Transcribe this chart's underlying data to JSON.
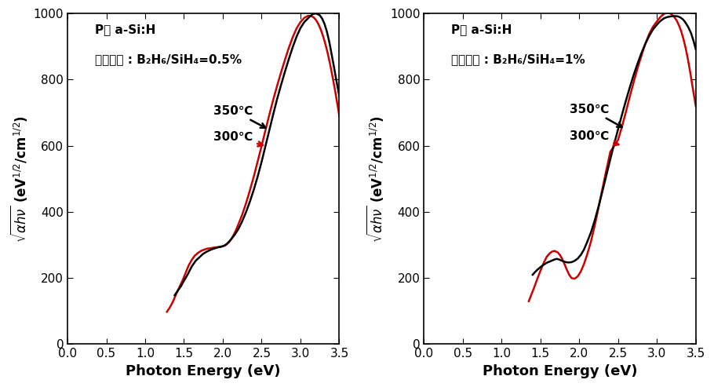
{
  "xlabel": "Photon Energy (eV)",
  "xlim": [
    0.0,
    3.5
  ],
  "ylim": [
    0,
    1000
  ],
  "xticks": [
    0.0,
    0.5,
    1.0,
    1.5,
    2.0,
    2.5,
    3.0,
    3.5
  ],
  "yticks": [
    0,
    200,
    400,
    600,
    800,
    1000
  ],
  "color_350": "#000000",
  "color_300": "#cc0000",
  "text_line1_left": "P형 a-Si:H",
  "text_line2_left": "도핑조건 : B₂H₆/SiH₄=0.5%",
  "text_line1_right": "P형 a-Si:H",
  "text_line2_right": "도핑조건 : B₂H₆/SiH₄=1%",
  "ann_350": "350℃",
  "ann_300": "300℃"
}
